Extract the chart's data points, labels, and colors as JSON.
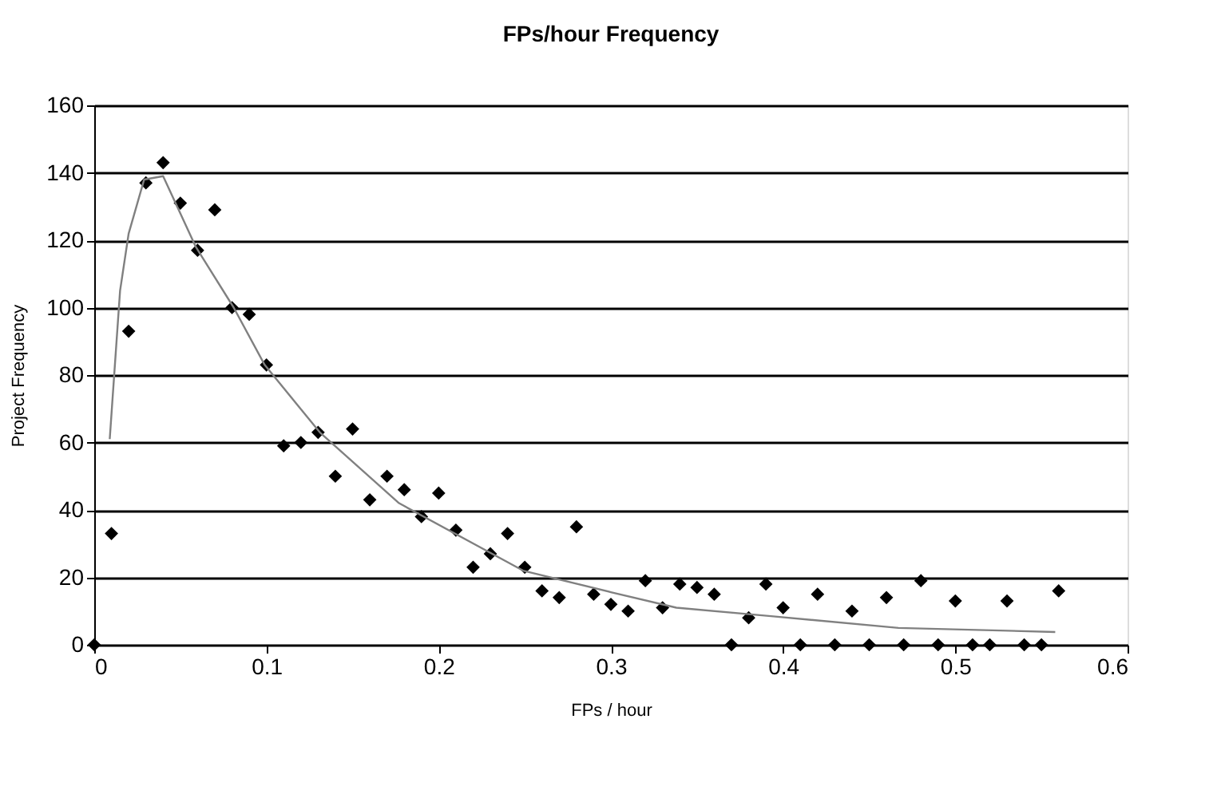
{
  "chart_data": {
    "type": "scatter",
    "title": "FPs/hour Frequency",
    "xlabel": "FPs / hour",
    "ylabel": "Project Frequency",
    "xlim": [
      0,
      0.6
    ],
    "xticks": [
      0,
      0.1,
      0.2,
      0.3,
      0.4,
      0.5,
      0.6
    ],
    "ylim": [
      0,
      160
    ],
    "yticks": [
      0,
      20,
      40,
      60,
      80,
      100,
      120,
      140,
      160
    ],
    "grid": "y",
    "marker": "diamond",
    "series": [
      {
        "color": "#000000",
        "x": [
          0,
          0.01,
          0.02,
          0.03,
          0.04,
          0.05,
          0.06,
          0.07,
          0.08,
          0.09,
          0.1,
          0.11,
          0.12,
          0.13,
          0.14,
          0.15,
          0.16,
          0.17,
          0.18,
          0.19,
          0.2,
          0.21,
          0.22,
          0.23,
          0.24,
          0.25,
          0.26,
          0.27,
          0.28,
          0.29,
          0.3,
          0.31,
          0.32,
          0.33,
          0.34,
          0.35,
          0.36,
          0.37,
          0.38,
          0.39,
          0.4,
          0.41,
          0.42,
          0.43,
          0.44,
          0.45,
          0.46,
          0.47,
          0.48,
          0.49,
          0.5,
          0.51,
          0.52,
          0.53,
          0.54,
          0.55,
          0.56
        ],
        "values": [
          0,
          33,
          93,
          137,
          143,
          131,
          117,
          129,
          100,
          98,
          83,
          59,
          60,
          63,
          50,
          64,
          43,
          50,
          46,
          38,
          45,
          34,
          23,
          27,
          33,
          23,
          16,
          14,
          35,
          15,
          12,
          10,
          19,
          11,
          18,
          17,
          15,
          0,
          8,
          18,
          11,
          0,
          15,
          0,
          10,
          0,
          14,
          0,
          19,
          0,
          13,
          0,
          0,
          13,
          0,
          0,
          16
        ]
      },
      {
        "type": "line",
        "color": "#808080",
        "marker": "none",
        "x": [
          0.009,
          0.015,
          0.02,
          0.029,
          0.04,
          0.059,
          0.081,
          0.099,
          0.131,
          0.177,
          0.249,
          0.3,
          0.338,
          0.393,
          0.467,
          0.558
        ],
        "values": [
          61,
          105,
          122,
          138,
          139,
          118,
          100,
          83,
          63,
          42,
          22,
          15.6,
          11,
          8.5,
          5,
          3.8
        ]
      }
    ]
  }
}
